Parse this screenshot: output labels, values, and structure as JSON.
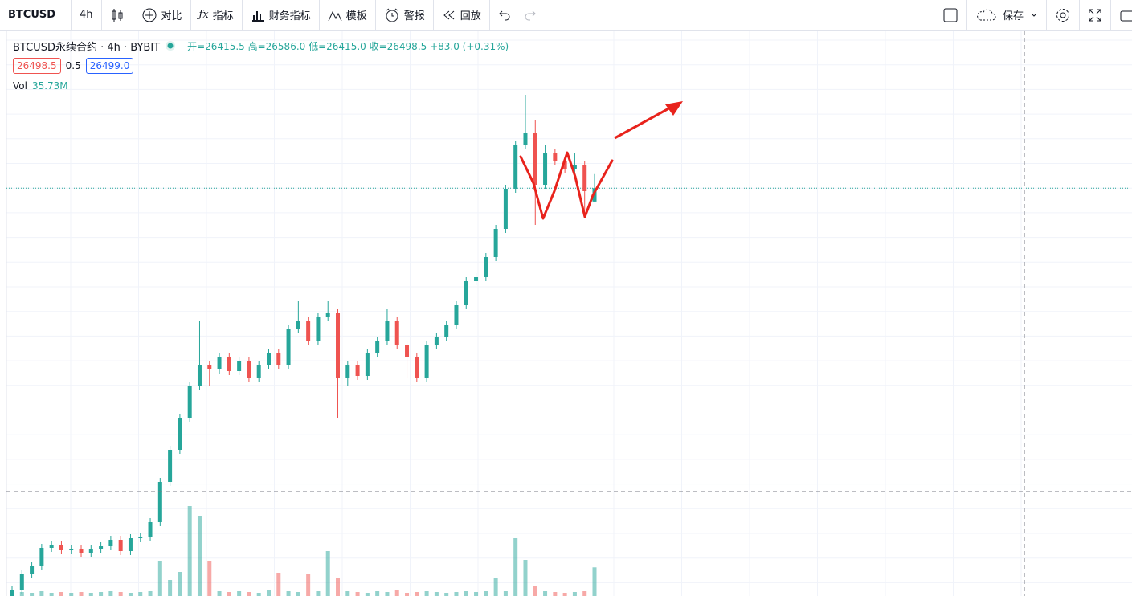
{
  "toolbar": {
    "symbol": "BTCUSD",
    "interval": "4h",
    "compare": "对比",
    "indicators": "指标",
    "financials": "财务指标",
    "templates": "模板",
    "alert": "警报",
    "replay": "回放",
    "save": "保存"
  },
  "legend": {
    "title": "BTCUSD永续合约 · 4h · BYBIT",
    "ohlc": "开=26415.5 高=26586.0 低=26415.0 收=26498.5 +83.0 (+0.31%)",
    "bid": "26498.5",
    "spread": "0.5",
    "ask": "26499.0",
    "vol_label": "Vol",
    "vol_value": "35.73M"
  },
  "chart_data": {
    "type": "candlestick",
    "open": [
      23960,
      23995,
      24095,
      24145,
      24260,
      24280,
      24245,
      24255,
      24230,
      24250,
      24270,
      24310,
      24240,
      24320,
      24330,
      24420,
      24670,
      24870,
      25070,
      25270,
      25395,
      25370,
      25445,
      25360,
      25420,
      25320,
      25395,
      25470,
      25395,
      25620,
      25670,
      25545,
      25695,
      25720,
      25320,
      25395,
      25330,
      25470,
      25545,
      25670,
      25520,
      25445,
      25320,
      25520,
      25570,
      25645,
      25770,
      25920,
      25945,
      26070,
      26245,
      26495,
      26770,
      26845,
      26520,
      26720,
      26670,
      26620,
      26645,
      26415.5
    ],
    "high": [
      24020,
      24120,
      24170,
      24285,
      24305,
      24305,
      24280,
      24280,
      24275,
      24295,
      24335,
      24335,
      24345,
      24355,
      24445,
      24695,
      24895,
      25095,
      25295,
      25670,
      25420,
      25470,
      25470,
      25445,
      25445,
      25420,
      25495,
      25495,
      25645,
      25795,
      25695,
      25720,
      25795,
      25745,
      25420,
      25420,
      25495,
      25570,
      25745,
      25695,
      25545,
      25470,
      25545,
      25595,
      25670,
      25795,
      25945,
      25970,
      26095,
      26270,
      26520,
      26795,
      27080,
      26920,
      26770,
      26745,
      26695,
      26720,
      26670,
      26586.0
    ],
    "low": [
      23935,
      23970,
      24070,
      24120,
      24235,
      24220,
      24220,
      24205,
      24205,
      24225,
      24245,
      24215,
      24215,
      24295,
      24305,
      24395,
      24645,
      24845,
      25045,
      25245,
      25270,
      25345,
      25335,
      25335,
      25295,
      25295,
      25370,
      25370,
      25370,
      25595,
      25520,
      25520,
      25670,
      25070,
      25270,
      25305,
      25305,
      25445,
      25520,
      25495,
      25320,
      25295,
      25295,
      25495,
      25545,
      25620,
      25745,
      25895,
      25920,
      26045,
      26220,
      26470,
      26745,
      26270,
      26495,
      26645,
      26595,
      26595,
      26320,
      26415.0
    ],
    "close": [
      23995,
      24095,
      24145,
      24260,
      24280,
      24245,
      24255,
      24230,
      24250,
      24270,
      24310,
      24240,
      24320,
      24330,
      24420,
      24670,
      24870,
      25070,
      25270,
      25395,
      25370,
      25445,
      25360,
      25420,
      25320,
      25395,
      25470,
      25395,
      25620,
      25670,
      25545,
      25695,
      25720,
      25320,
      25395,
      25330,
      25470,
      25545,
      25670,
      25520,
      25445,
      25320,
      25520,
      25570,
      25645,
      25770,
      25920,
      25945,
      26070,
      26245,
      26495,
      26770,
      26845,
      26520,
      26720,
      26670,
      26620,
      26645,
      26480,
      26498.5
    ],
    "volume": [
      5,
      5,
      4,
      6,
      4,
      5,
      4,
      5,
      4,
      5,
      6,
      5,
      4,
      5,
      6,
      44,
      20,
      30,
      112,
      100,
      43,
      6,
      5,
      6,
      5,
      4,
      8,
      29,
      6,
      5,
      27,
      6,
      56,
      22,
      6,
      5,
      4,
      6,
      5,
      8,
      4,
      5,
      6,
      5,
      4,
      5,
      6,
      5,
      6,
      22,
      6,
      72,
      45,
      12,
      6,
      5,
      4,
      5,
      6,
      35.73
    ],
    "ylim": [
      23960,
      27470
    ],
    "vlim": [
      0,
      300
    ],
    "up_color": "#26a69a",
    "down_color": "#ef5350",
    "last_price_line": 26498.5
  }
}
